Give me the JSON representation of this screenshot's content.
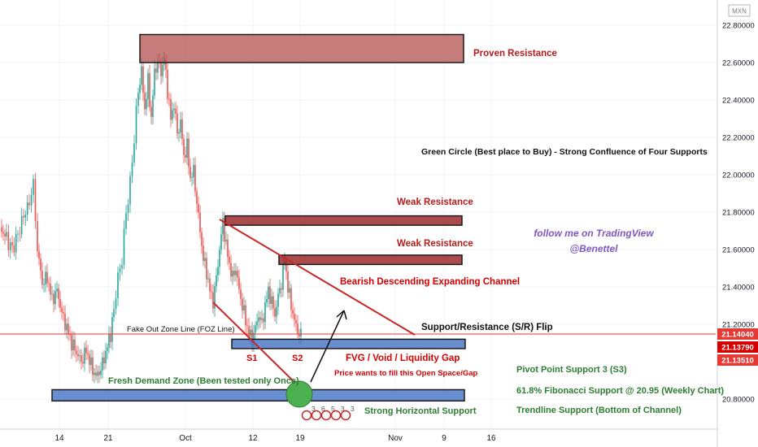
{
  "chart_data": {
    "type": "candlestick",
    "title": "",
    "currency_label": "MXN",
    "y_axis": {
      "ticks": [
        "22.80000",
        "22.60000",
        "22.40000",
        "22.20000",
        "22.00000",
        "21.80000",
        "21.60000",
        "21.40000",
        "21.20000",
        "20.80000"
      ],
      "tick_values": [
        22.8,
        22.6,
        22.4,
        22.2,
        22.0,
        21.8,
        21.6,
        21.4,
        21.2,
        20.8
      ],
      "ylim": [
        20.72,
        22.85
      ]
    },
    "x_axis": {
      "ticks": [
        "14",
        "21",
        "Oct",
        "12",
        "19",
        "Nov",
        "9",
        "16"
      ]
    },
    "price_labels": [
      {
        "text": "21.14040",
        "value": 21.1404,
        "color": "#e53935"
      },
      {
        "text": "21.13790",
        "value": 21.1379,
        "color": "#d50000"
      },
      {
        "text": "21.13510",
        "value": 21.1351,
        "color": "#e53935"
      }
    ],
    "zones": [
      {
        "name": "Proven Resistance",
        "top": 22.75,
        "bottom": 22.6,
        "color": "#b71c1c"
      },
      {
        "name": "Weak Resistance",
        "top": 21.78,
        "bottom": 21.73,
        "color": "#b71c1c"
      },
      {
        "name": "Weak Resistance",
        "top": 21.57,
        "bottom": 21.52,
        "color": "#b71c1c"
      },
      {
        "name": "S/R Flip",
        "top": 21.12,
        "bottom": 21.07,
        "color": "#2962ff"
      },
      {
        "name": "Demand Zone",
        "top": 20.85,
        "bottom": 20.79,
        "color": "#2962ff"
      }
    ],
    "annotations": {
      "proven_resistance": "Proven Resistance",
      "green_circle": "Green Circle (Best place to Buy) - Strong Confluence of Four Supports",
      "weak_resistance_1": "Weak Resistance",
      "weak_resistance_2": "Weak Resistance",
      "follow_1": "follow me on TradingView",
      "follow_2": "@Benettel",
      "channel": "Bearish Descending Expanding Channel",
      "sr_flip": "Support/Resistance (S/R) Flip",
      "foz": "Fake Out Zone Line (FOZ Line)",
      "s1": "S1",
      "s2": "S2",
      "fvg": "FVG / Void / Liquidity Gap",
      "fill_gap": "Price wants to fill this Open Space/Gap",
      "pivot": "Pivot Point Support 3 (S3)",
      "demand": "Fresh Demand Zone (Been tested only Once)",
      "fib": "61.8% Fibonacci Support @ 20.95 (Weekly Chart)",
      "horizontal": "Strong Horizontal Support",
      "trendline": "Trendline Support (Bottom of Channel)"
    },
    "event_markers": [
      "3",
      "6",
      "5",
      "3",
      "3"
    ],
    "price_path": [
      [
        0,
        21.72
      ],
      [
        8,
        21.66
      ],
      [
        15,
        21.6
      ],
      [
        22,
        21.68
      ],
      [
        29,
        21.78
      ],
      [
        36,
        21.85
      ],
      [
        41,
        21.95
      ],
      [
        46,
        21.6
      ],
      [
        52,
        21.42
      ],
      [
        58,
        21.45
      ],
      [
        64,
        21.33
      ],
      [
        70,
        21.38
      ],
      [
        76,
        21.26
      ],
      [
        82,
        21.18
      ],
      [
        88,
        21.1
      ],
      [
        94,
        21.05
      ],
      [
        100,
        21.0
      ],
      [
        106,
        21.06
      ],
      [
        112,
        20.98
      ],
      [
        118,
        20.92
      ],
      [
        124,
        20.96
      ],
      [
        130,
        21.05
      ],
      [
        136,
        21.15
      ],
      [
        140,
        21.28
      ],
      [
        145,
        21.45
      ],
      [
        150,
        21.55
      ],
      [
        155,
        21.8
      ],
      [
        160,
        21.95
      ],
      [
        165,
        22.2
      ],
      [
        170,
        22.45
      ],
      [
        174,
        22.55
      ],
      [
        178,
        22.35
      ],
      [
        182,
        22.5
      ],
      [
        186,
        22.3
      ],
      [
        190,
        22.55
      ],
      [
        194,
        22.6
      ],
      [
        198,
        22.55
      ],
      [
        202,
        22.62
      ],
      [
        206,
        22.45
      ],
      [
        210,
        22.3
      ],
      [
        214,
        22.38
      ],
      [
        218,
        22.22
      ],
      [
        222,
        22.28
      ],
      [
        226,
        22.1
      ],
      [
        230,
        22.15
      ],
      [
        234,
        21.98
      ],
      [
        238,
        22.02
      ],
      [
        242,
        21.85
      ],
      [
        246,
        21.7
      ],
      [
        250,
        21.55
      ],
      [
        254,
        21.48
      ],
      [
        258,
        21.38
      ],
      [
        262,
        21.32
      ],
      [
        266,
        21.45
      ],
      [
        270,
        21.6
      ],
      [
        274,
        21.75
      ],
      [
        278,
        21.62
      ],
      [
        282,
        21.52
      ],
      [
        286,
        21.45
      ],
      [
        290,
        21.5
      ],
      [
        294,
        21.38
      ],
      [
        298,
        21.3
      ],
      [
        302,
        21.22
      ],
      [
        306,
        21.15
      ],
      [
        310,
        21.12
      ],
      [
        314,
        21.18
      ],
      [
        318,
        21.25
      ],
      [
        322,
        21.2
      ],
      [
        326,
        21.3
      ],
      [
        330,
        21.38
      ],
      [
        334,
        21.32
      ],
      [
        338,
        21.25
      ],
      [
        342,
        21.35
      ],
      [
        346,
        21.42
      ],
      [
        350,
        21.55
      ],
      [
        354,
        21.4
      ],
      [
        358,
        21.3
      ],
      [
        362,
        21.22
      ],
      [
        366,
        21.16
      ],
      [
        370,
        21.14
      ]
    ]
  }
}
